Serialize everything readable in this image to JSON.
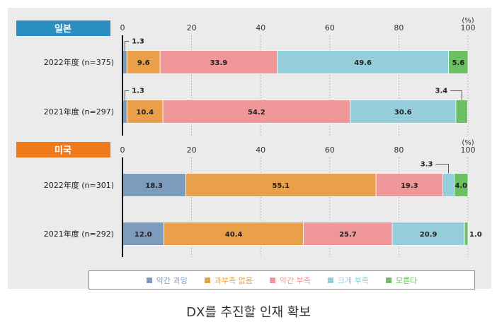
{
  "chart_data": {
    "type": "bar",
    "orientation": "horizontal",
    "stacked": true,
    "xlim": [
      0,
      100
    ],
    "x_ticks": [
      "0",
      "20",
      "40",
      "60",
      "80",
      "100"
    ],
    "unit_label": "(%)",
    "legend_position": "bottom",
    "series": [
      {
        "name": "약간 과잉",
        "color": "#7d9bbd"
      },
      {
        "name": "과부족 없음",
        "color": "#eaa04a"
      },
      {
        "name": "약간 부족",
        "color": "#ef9699"
      },
      {
        "name": "크게 부족",
        "color": "#95cdda"
      },
      {
        "name": "모른다",
        "color": "#6dbf63"
      }
    ],
    "groups": [
      {
        "name": "일본",
        "color": "#2b8ec0",
        "rows": [
          {
            "label": "2022年度 (n=375)",
            "values": [
              1.3,
              9.6,
              33.9,
              49.6,
              5.6
            ]
          },
          {
            "label": "2021年度 (n=297)",
            "values": [
              1.3,
              10.4,
              54.2,
              30.6,
              3.4
            ]
          }
        ]
      },
      {
        "name": "미국",
        "color": "#ee7a1c",
        "rows": [
          {
            "label": "2022年度 (n=301)",
            "values": [
              18.3,
              55.1,
              19.3,
              3.3,
              4.0
            ]
          },
          {
            "label": "2021年度 (n=292)",
            "values": [
              12.0,
              40.4,
              25.7,
              20.9,
              1.0
            ]
          }
        ]
      }
    ]
  },
  "caption": "DX를 추진할 인재 확보"
}
